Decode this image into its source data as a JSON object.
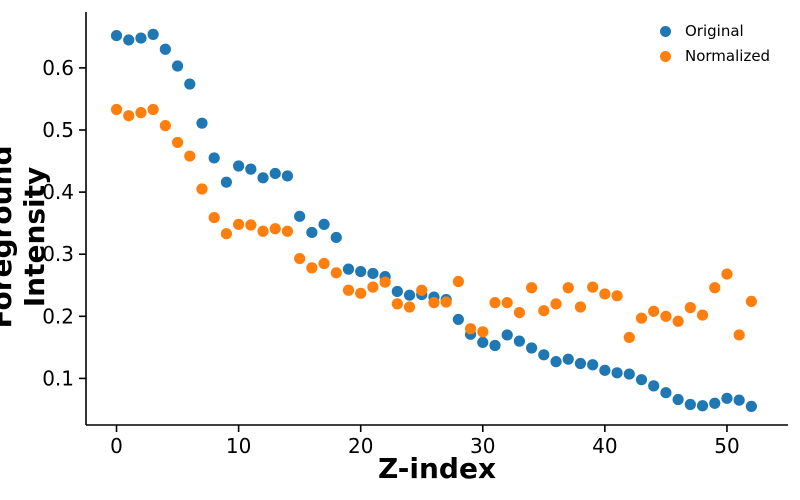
{
  "chart_data": {
    "type": "scatter",
    "title": "",
    "xlabel": "Z-index",
    "ylabel": "Foreground Intensity",
    "xlim": [
      -2.5,
      55
    ],
    "ylim": [
      0.025,
      0.69
    ],
    "xticks": [
      0,
      10,
      20,
      30,
      40,
      50
    ],
    "yticks": [
      0.1,
      0.2,
      0.3,
      0.4,
      0.5,
      0.6
    ],
    "grid": false,
    "legend_position": "top-right",
    "legend_frame": false,
    "x": [
      0,
      1,
      2,
      3,
      4,
      5,
      6,
      7,
      8,
      9,
      10,
      11,
      12,
      13,
      14,
      15,
      16,
      17,
      18,
      19,
      20,
      21,
      22,
      23,
      24,
      25,
      26,
      27,
      28,
      29,
      30,
      31,
      32,
      33,
      34,
      35,
      36,
      37,
      38,
      39,
      40,
      41,
      42,
      43,
      44,
      45,
      46,
      47,
      48,
      49,
      50,
      51,
      52
    ],
    "series": [
      {
        "name": "Original",
        "color": "#1f77b4",
        "values": [
          0.652,
          0.645,
          0.648,
          0.654,
          0.63,
          0.603,
          0.574,
          0.511,
          0.455,
          0.416,
          0.442,
          0.437,
          0.423,
          0.43,
          0.426,
          0.361,
          0.335,
          0.348,
          0.327,
          0.276,
          0.272,
          0.269,
          0.264,
          0.24,
          0.234,
          0.235,
          0.231,
          0.227,
          0.195,
          0.171,
          0.158,
          0.153,
          0.17,
          0.16,
          0.149,
          0.138,
          0.127,
          0.131,
          0.124,
          0.122,
          0.113,
          0.109,
          0.107,
          0.098,
          0.088,
          0.077,
          0.066,
          0.058,
          0.056,
          0.06,
          0.068,
          0.065,
          0.055
        ]
      },
      {
        "name": "Normalized",
        "color": "#ff7f0e",
        "values": [
          0.533,
          0.523,
          0.528,
          0.533,
          0.507,
          0.48,
          0.458,
          0.405,
          0.359,
          0.333,
          0.348,
          0.347,
          0.337,
          0.341,
          0.337,
          0.293,
          0.278,
          0.285,
          0.27,
          0.242,
          0.237,
          0.247,
          0.255,
          0.22,
          0.215,
          0.242,
          0.222,
          0.223,
          0.256,
          0.18,
          0.175,
          0.222,
          0.222,
          0.206,
          0.246,
          0.209,
          0.22,
          0.246,
          0.215,
          0.247,
          0.236,
          0.233,
          0.166,
          0.197,
          0.208,
          0.2,
          0.192,
          0.214,
          0.202,
          0.246,
          0.268,
          0.17,
          0.224
        ]
      }
    ],
    "axis_color": "#000000",
    "tick_label_color": "#000000"
  }
}
